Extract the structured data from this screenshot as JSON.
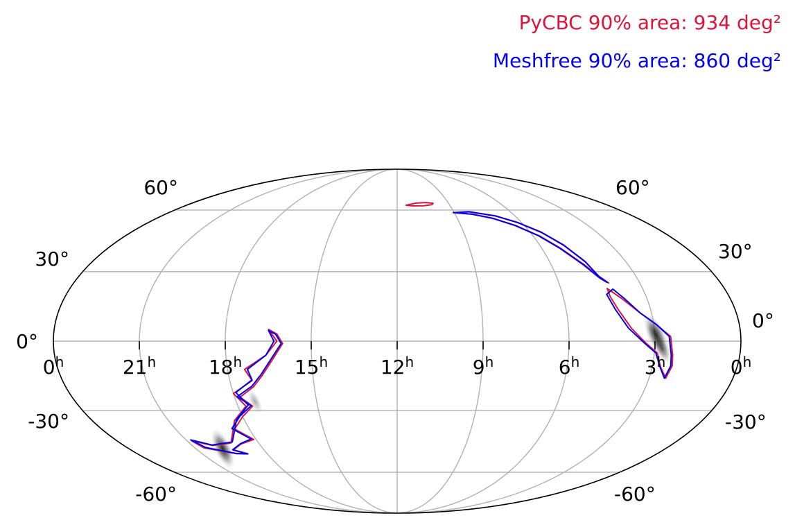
{
  "chart_data": {
    "type": "sky-map",
    "projection": "mollweide",
    "grid": true,
    "legend_position": "top-right",
    "ra_ticks": [
      {
        "hour": 0,
        "label": "0",
        "unit": "h",
        "side": "left"
      },
      {
        "hour": 21,
        "label": "21",
        "unit": "h"
      },
      {
        "hour": 18,
        "label": "18",
        "unit": "h"
      },
      {
        "hour": 15,
        "label": "15",
        "unit": "h"
      },
      {
        "hour": 12,
        "label": "12",
        "unit": "h"
      },
      {
        "hour": 9,
        "label": "9",
        "unit": "h"
      },
      {
        "hour": 6,
        "label": "6",
        "unit": "h"
      },
      {
        "hour": 3,
        "label": "3",
        "unit": "h"
      },
      {
        "hour": 0,
        "label": "0",
        "unit": "h",
        "side": "right"
      }
    ],
    "dec_labels_left": [
      {
        "dec": 60,
        "label": "60°"
      },
      {
        "dec": 30,
        "label": "30°"
      },
      {
        "dec": 0,
        "label": "0°"
      },
      {
        "dec": -30,
        "label": "-30°"
      },
      {
        "dec": -60,
        "label": "-60°"
      }
    ],
    "dec_labels_right": [
      {
        "dec": 60,
        "label": "60°"
      },
      {
        "dec": 30,
        "label": "30°"
      },
      {
        "dec": 0,
        "label": "0°"
      },
      {
        "dec": -30,
        "label": "-30°"
      },
      {
        "dec": -60,
        "label": "-60°"
      }
    ],
    "series": [
      {
        "name": "PyCBC",
        "color": "#dc143c",
        "area_text": "PyCBC 90% area: 934 deg²",
        "contours": [
          {
            "id": "north-blob",
            "points": [
              [
                11.5,
                62.7
              ],
              [
                10.9,
                63.9
              ],
              [
                10.3,
                64.2
              ],
              [
                9.9,
                63.8
              ],
              [
                10.0,
                63.0
              ],
              [
                10.5,
                62.4
              ],
              [
                11.1,
                62.3
              ]
            ]
          },
          {
            "id": "north-arc",
            "points": [
              [
                8.95,
                58.5
              ],
              [
                8.2,
                59.0
              ],
              [
                7.0,
                56.8
              ],
              [
                6.2,
                53.5
              ],
              [
                5.5,
                48.6
              ],
              [
                5.0,
                42.5
              ],
              [
                4.6,
                34.7
              ],
              [
                4.4,
                28.0
              ],
              [
                4.15,
                25.0
              ],
              [
                4.35,
                27.0
              ],
              [
                4.7,
                33.0
              ],
              [
                5.2,
                40.5
              ],
              [
                5.7,
                46.5
              ],
              [
                6.4,
                51.8
              ],
              [
                7.2,
                55.5
              ],
              [
                8.1,
                57.7
              ]
            ]
          },
          {
            "id": "east-lobe",
            "points": [
              [
                4.3,
                22.6
              ],
              [
                3.9,
                18.1
              ],
              [
                3.4,
                12.0
              ],
              [
                2.9,
                6.9
              ],
              [
                2.45,
                2.0
              ],
              [
                2.35,
                -6.0
              ],
              [
                2.3,
                -10.5
              ],
              [
                2.4,
                -15.8
              ],
              [
                2.7,
                -11.0
              ],
              [
                2.9,
                -5.0
              ],
              [
                3.3,
                -1.0
              ],
              [
                3.8,
                5.5
              ],
              [
                4.15,
                13.5
              ],
              [
                4.3,
                19.0
              ]
            ]
          },
          {
            "id": "south-west",
            "points": [
              [
                16.5,
                5.0
              ],
              [
                16.2,
                0.0
              ],
              [
                16.6,
                -6.0
              ],
              [
                17.4,
                -12.0
              ],
              [
                17.2,
                -16.8
              ],
              [
                18.0,
                -22.4
              ],
              [
                17.7,
                -28.0
              ],
              [
                18.4,
                -34.5
              ],
              [
                18.7,
                -39.0
              ],
              [
                19.2,
                -45.0
              ],
              [
                20.1,
                -46.2
              ],
              [
                20.8,
                -44.0
              ],
              [
                20.6,
                -47.4
              ],
              [
                19.4,
                -50.3
              ],
              [
                18.9,
                -50.4
              ],
              [
                19.4,
                -48.5
              ],
              [
                18.8,
                -45.5
              ],
              [
                18.1,
                -43.3
              ],
              [
                18.6,
                -38.4
              ],
              [
                18.0,
                -32.7
              ],
              [
                17.45,
                -28.0
              ],
              [
                17.8,
                -24.0
              ],
              [
                17.2,
                -19.5
              ],
              [
                16.8,
                -14.5
              ],
              [
                16.3,
                -6.5
              ],
              [
                16.0,
                -1.0
              ],
              [
                16.2,
                3.0
              ]
            ]
          }
        ]
      },
      {
        "name": "Meshfree",
        "color": "#0000ee",
        "area_text": "Meshfree 90% area: 860 deg²",
        "contours": [
          {
            "id": "north-arc",
            "points": [
              [
                9.05,
                58.6
              ],
              [
                8.2,
                59.1
              ],
              [
                7.0,
                56.9
              ],
              [
                6.2,
                53.4
              ],
              [
                5.5,
                48.4
              ],
              [
                5.0,
                42.2
              ],
              [
                4.6,
                34.5
              ],
              [
                4.4,
                27.9
              ],
              [
                4.2,
                25.2
              ],
              [
                4.4,
                27.2
              ],
              [
                4.75,
                33.2
              ],
              [
                5.25,
                40.7
              ],
              [
                5.75,
                46.7
              ],
              [
                6.45,
                51.9
              ],
              [
                7.25,
                55.6
              ],
              [
                8.15,
                57.8
              ]
            ]
          },
          {
            "id": "east-lobe",
            "points": [
              [
                4.1,
                22.3
              ],
              [
                3.8,
                18.0
              ],
              [
                3.4,
                12.0
              ],
              [
                2.9,
                7.0
              ],
              [
                2.5,
                2.0
              ],
              [
                2.4,
                -6.0
              ],
              [
                2.35,
                -10.5
              ],
              [
                2.45,
                -15.8
              ],
              [
                2.72,
                -11.0
              ],
              [
                2.95,
                -5.0
              ],
              [
                3.35,
                -1.0
              ],
              [
                3.9,
                5.5
              ],
              [
                4.25,
                13.5
              ],
              [
                4.4,
                20.0
              ]
            ]
          },
          {
            "id": "south-west",
            "points": [
              [
                16.5,
                4.5
              ],
              [
                16.3,
                0.0
              ],
              [
                16.6,
                -6.0
              ],
              [
                17.3,
                -12.0
              ],
              [
                17.2,
                -16.5
              ],
              [
                17.9,
                -22.0
              ],
              [
                17.6,
                -27.5
              ],
              [
                18.3,
                -34.0
              ],
              [
                18.6,
                -38.5
              ],
              [
                19.1,
                -44.5
              ],
              [
                20.1,
                -46.0
              ],
              [
                20.8,
                -43.5
              ],
              [
                20.5,
                -47.2
              ],
              [
                19.4,
                -50.2
              ],
              [
                18.9,
                -50.3
              ],
              [
                19.4,
                -48.3
              ],
              [
                18.8,
                -45.3
              ],
              [
                18.2,
                -43.1
              ],
              [
                18.7,
                -38.2
              ],
              [
                18.1,
                -32.5
              ],
              [
                17.5,
                -27.8
              ],
              [
                17.9,
                -23.8
              ],
              [
                17.25,
                -19.2
              ],
              [
                16.85,
                -14.3
              ],
              [
                16.35,
                -6.3
              ],
              [
                16.05,
                -1.0
              ],
              [
                16.25,
                3.0
              ]
            ]
          }
        ]
      }
    ],
    "probability_peaks": [
      {
        "ra": 2.95,
        "dec": 2.5,
        "weight": 1.0
      },
      {
        "ra": 2.75,
        "dec": -3.0,
        "weight": 0.6
      },
      {
        "ra": 19.8,
        "dec": -47.8,
        "weight": 0.9
      },
      {
        "ra": 17.3,
        "dec": -26.0,
        "weight": 0.35
      }
    ]
  }
}
